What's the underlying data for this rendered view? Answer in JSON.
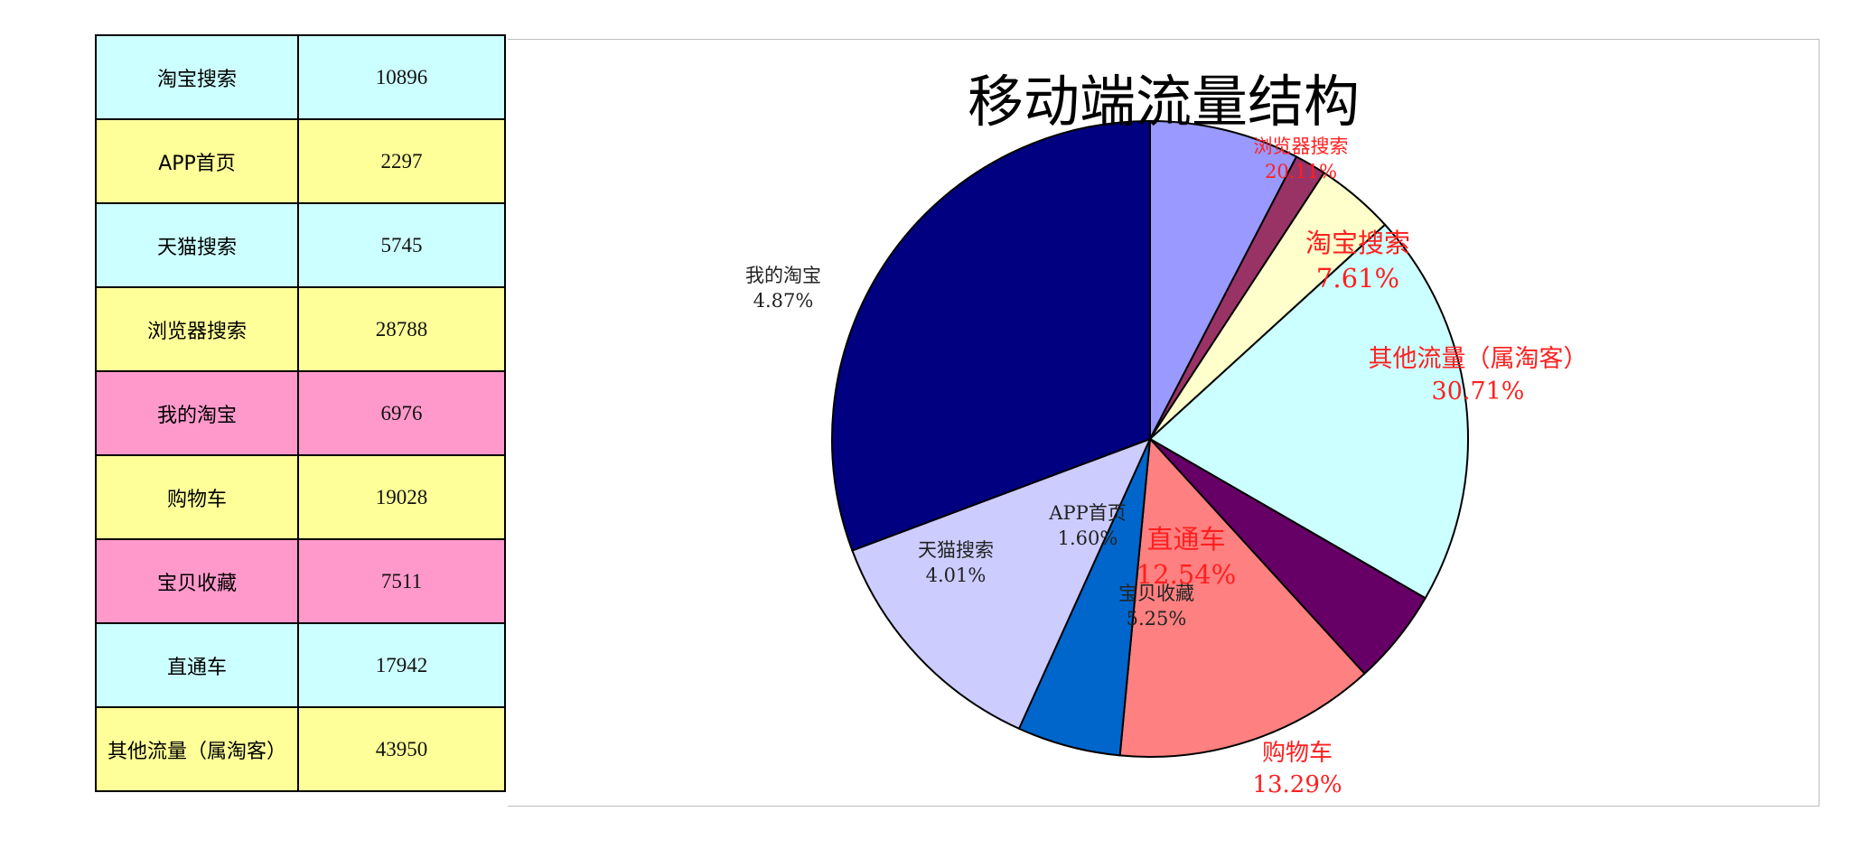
{
  "table": {
    "rows": [
      {
        "name": "淘宝搜索",
        "value": "10896",
        "color": "#ccffff"
      },
      {
        "name": "APP首页",
        "value": "2297",
        "color": "#ffff99"
      },
      {
        "name": "天猫搜索",
        "value": "5745",
        "color": "#ccffff"
      },
      {
        "name": "浏览器搜索",
        "value": "28788",
        "color": "#ffff99"
      },
      {
        "name": "我的淘宝",
        "value": "6976",
        "color": "#ff99cc"
      },
      {
        "name": "购物车",
        "value": "19028",
        "color": "#ffff99"
      },
      {
        "name": "宝贝收藏",
        "value": "7511",
        "color": "#ff99cc"
      },
      {
        "name": "直通车",
        "value": "17942",
        "color": "#ccffff"
      },
      {
        "name": "其他流量（属淘客）",
        "value": "43950",
        "color": "#ffff99"
      }
    ]
  },
  "chart_data": {
    "type": "pie",
    "title": "移动端流量结构",
    "categories": [
      "淘宝搜索",
      "APP首页",
      "天猫搜索",
      "浏览器搜索",
      "我的淘宝",
      "购物车",
      "宝贝收藏",
      "直通车",
      "其他流量（属淘客）"
    ],
    "values": [
      10896,
      2297,
      5745,
      28788,
      6976,
      19028,
      7511,
      17942,
      43950
    ],
    "percent_labels": [
      "7.61%",
      "1.60%",
      "4.01%",
      "20.11%",
      "4.87%",
      "13.29%",
      "5.25%",
      "12.54%",
      "30.71%"
    ],
    "colors": [
      "#9999ff",
      "#993366",
      "#ffffcc",
      "#ccffff",
      "#660066",
      "#ff8080",
      "#0066cc",
      "#ccccff",
      "#000080"
    ],
    "label_colors": [
      "#ff2020",
      "#222222",
      "#222222",
      "#ff2020",
      "#222222",
      "#ff2020",
      "#222222",
      "#ff2020",
      "#ff2020"
    ],
    "start_angle": "12 o'clock",
    "direction": "clockwise",
    "legend": "none"
  }
}
